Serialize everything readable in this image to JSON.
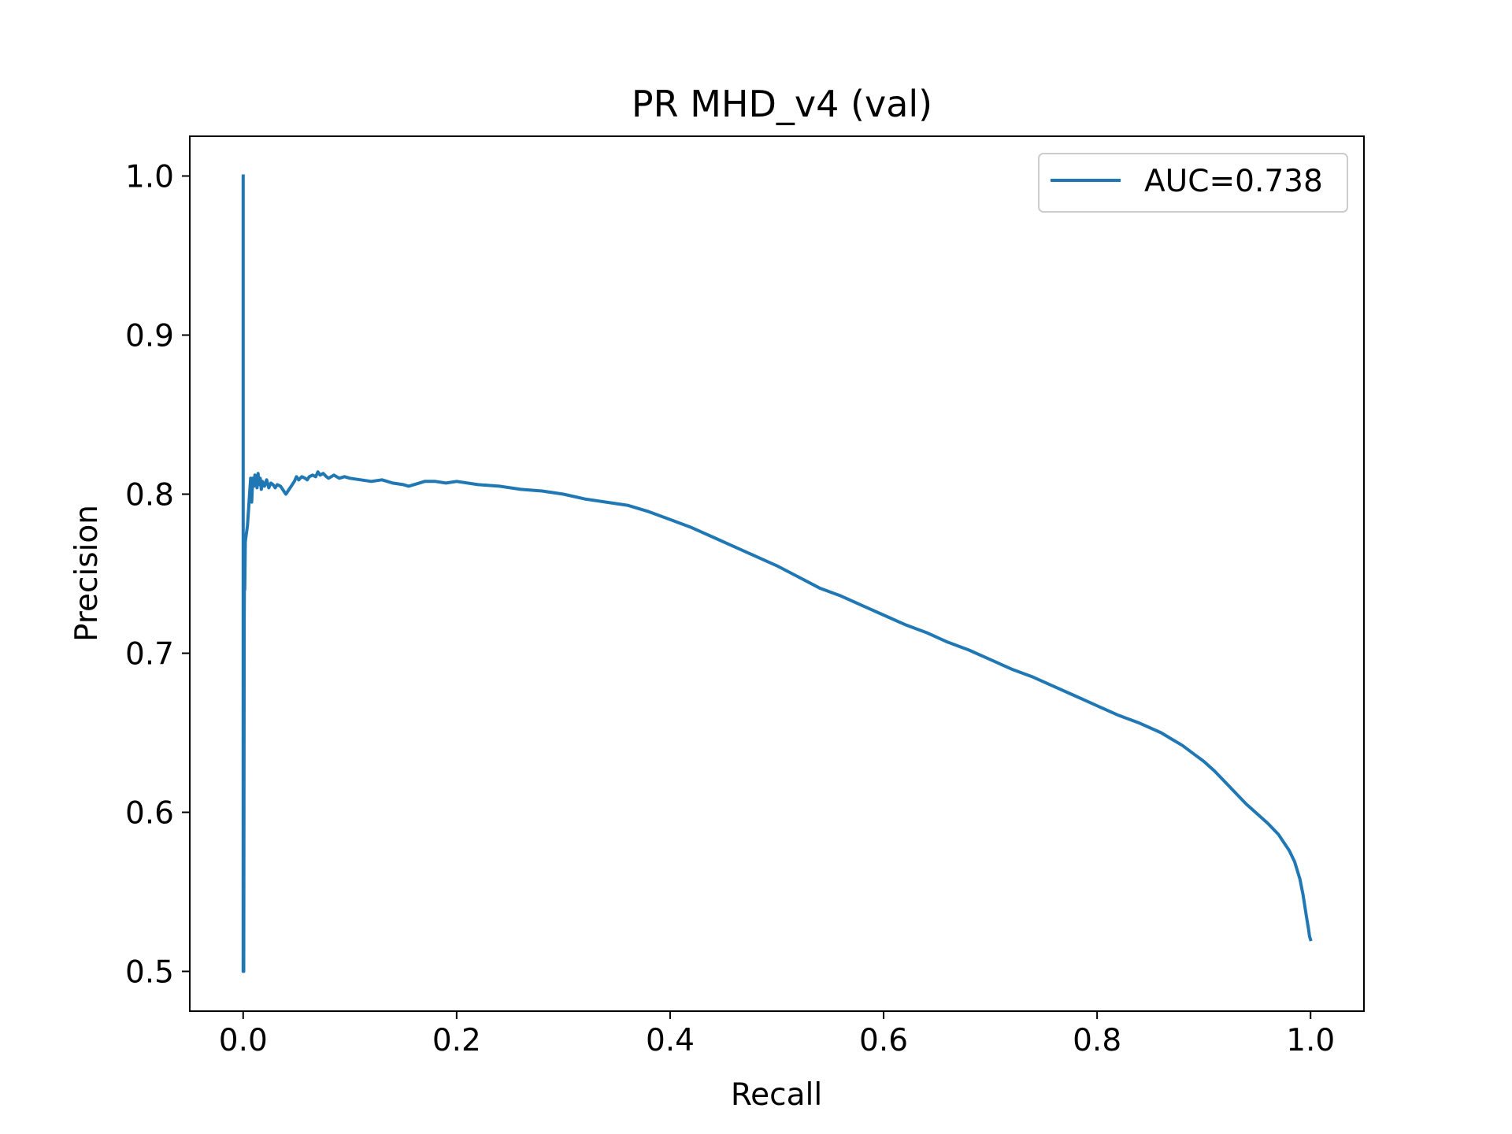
{
  "chart_data": {
    "type": "line",
    "title": "PR MHD_v4 (val)",
    "xlabel": "Recall",
    "ylabel": "Precision",
    "xlim": [
      -0.05,
      1.05
    ],
    "ylim": [
      0.475,
      1.025
    ],
    "xticks": [
      0.0,
      0.2,
      0.4,
      0.6,
      0.8,
      1.0
    ],
    "xtick_labels": [
      "0.0",
      "0.2",
      "0.4",
      "0.6",
      "0.8",
      "1.0"
    ],
    "yticks": [
      0.5,
      0.6,
      0.7,
      0.8,
      0.9,
      1.0
    ],
    "ytick_labels": [
      "0.5",
      "0.6",
      "0.7",
      "0.8",
      "0.9",
      "1.0"
    ],
    "grid": false,
    "legend_position": "upper right",
    "series": [
      {
        "name": "AUC=0.738",
        "color": "#1f77b4",
        "x": [
          0.0,
          0.0,
          0.0005,
          0.001,
          0.0012,
          0.0015,
          0.002,
          0.003,
          0.004,
          0.005,
          0.006,
          0.007,
          0.008,
          0.009,
          0.01,
          0.011,
          0.012,
          0.013,
          0.014,
          0.015,
          0.016,
          0.017,
          0.018,
          0.02,
          0.022,
          0.024,
          0.026,
          0.028,
          0.03,
          0.032,
          0.035,
          0.038,
          0.04,
          0.042,
          0.045,
          0.048,
          0.05,
          0.052,
          0.055,
          0.058,
          0.06,
          0.062,
          0.065,
          0.068,
          0.07,
          0.072,
          0.075,
          0.078,
          0.08,
          0.085,
          0.09,
          0.095,
          0.1,
          0.11,
          0.12,
          0.13,
          0.135,
          0.14,
          0.15,
          0.155,
          0.16,
          0.165,
          0.17,
          0.18,
          0.19,
          0.2,
          0.22,
          0.24,
          0.26,
          0.28,
          0.3,
          0.32,
          0.34,
          0.36,
          0.38,
          0.4,
          0.42,
          0.44,
          0.46,
          0.48,
          0.5,
          0.52,
          0.54,
          0.56,
          0.58,
          0.6,
          0.62,
          0.64,
          0.66,
          0.68,
          0.7,
          0.72,
          0.74,
          0.76,
          0.78,
          0.8,
          0.82,
          0.84,
          0.86,
          0.87,
          0.88,
          0.89,
          0.9,
          0.91,
          0.92,
          0.93,
          0.94,
          0.95,
          0.96,
          0.97,
          0.975,
          0.98,
          0.985,
          0.99,
          0.993,
          0.996,
          0.998,
          0.999,
          1.0
        ],
        "y": [
          1.0,
          0.5,
          0.5,
          0.72,
          0.75,
          0.74,
          0.77,
          0.775,
          0.78,
          0.79,
          0.8,
          0.81,
          0.795,
          0.81,
          0.805,
          0.812,
          0.808,
          0.804,
          0.813,
          0.806,
          0.81,
          0.803,
          0.808,
          0.805,
          0.809,
          0.804,
          0.807,
          0.806,
          0.804,
          0.806,
          0.805,
          0.802,
          0.8,
          0.802,
          0.805,
          0.808,
          0.811,
          0.809,
          0.811,
          0.81,
          0.809,
          0.811,
          0.812,
          0.811,
          0.814,
          0.812,
          0.813,
          0.811,
          0.81,
          0.812,
          0.81,
          0.811,
          0.81,
          0.809,
          0.808,
          0.809,
          0.808,
          0.807,
          0.806,
          0.805,
          0.806,
          0.807,
          0.808,
          0.808,
          0.807,
          0.808,
          0.806,
          0.805,
          0.803,
          0.802,
          0.8,
          0.797,
          0.795,
          0.793,
          0.789,
          0.784,
          0.779,
          0.773,
          0.767,
          0.761,
          0.755,
          0.748,
          0.741,
          0.736,
          0.73,
          0.724,
          0.718,
          0.713,
          0.707,
          0.702,
          0.696,
          0.69,
          0.685,
          0.679,
          0.673,
          0.667,
          0.661,
          0.656,
          0.65,
          0.646,
          0.642,
          0.637,
          0.632,
          0.626,
          0.619,
          0.612,
          0.605,
          0.599,
          0.593,
          0.586,
          0.581,
          0.576,
          0.569,
          0.558,
          0.548,
          0.535,
          0.527,
          0.522,
          0.52
        ]
      }
    ]
  }
}
